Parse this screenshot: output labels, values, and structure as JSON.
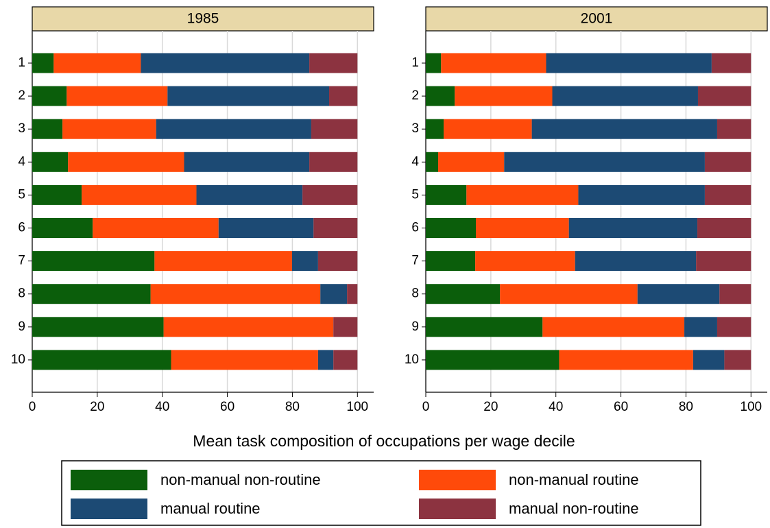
{
  "chart_data": [
    {
      "type": "bar",
      "orientation": "horizontal",
      "stacked": true,
      "title": "1985",
      "categories": [
        "1",
        "2",
        "3",
        "4",
        "5",
        "6",
        "7",
        "8",
        "9",
        "10"
      ],
      "series": [
        {
          "name": "non-manual non-routine",
          "color": "#0b5e0b",
          "values": [
            6.6,
            10.6,
            9.3,
            11.0,
            15.2,
            18.6,
            37.6,
            36.4,
            40.4,
            42.7
          ]
        },
        {
          "name": "non-manual routine",
          "color": "#ff4a0a",
          "values": [
            26.8,
            31.0,
            28.8,
            35.7,
            35.3,
            38.7,
            42.3,
            52.2,
            52.2,
            45.2
          ]
        },
        {
          "name": "manual routine",
          "color": "#1c4a74",
          "values": [
            51.8,
            49.7,
            47.7,
            38.5,
            32.6,
            29.2,
            8.0,
            8.2,
            0,
            4.7
          ]
        },
        {
          "name": "manual non-routine",
          "color": "#8c3340",
          "values": [
            14.8,
            8.7,
            14.2,
            14.8,
            16.9,
            13.5,
            12.1,
            3.2,
            7.4,
            7.4
          ]
        }
      ],
      "xlim": [
        0,
        105
      ],
      "xticks": [
        0,
        20,
        40,
        60,
        80,
        100
      ],
      "grid": true
    },
    {
      "type": "bar",
      "orientation": "horizontal",
      "stacked": true,
      "title": "2001",
      "categories": [
        "1",
        "2",
        "3",
        "4",
        "5",
        "6",
        "7",
        "8",
        "9",
        "10"
      ],
      "series": [
        {
          "color": "#0b5e0b",
          "values": [
            4.7,
            8.9,
            5.5,
            3.8,
            12.5,
            15.4,
            15.2,
            22.8,
            35.9,
            41.0
          ]
        },
        {
          "color": "#ff4a0a",
          "values": [
            32.3,
            30.0,
            27.1,
            20.3,
            34.4,
            28.6,
            30.7,
            42.3,
            43.6,
            41.2
          ]
        },
        {
          "color": "#1c4a74",
          "values": [
            50.9,
            44.8,
            57.0,
            61.7,
            38.9,
            39.5,
            37.2,
            25.2,
            10.1,
            9.6
          ]
        },
        {
          "color": "#8c3340",
          "values": [
            12.1,
            16.3,
            10.4,
            14.2,
            14.2,
            16.5,
            16.9,
            9.7,
            10.4,
            8.2
          ]
        }
      ],
      "xlim": [
        0,
        105
      ],
      "xticks": [
        0,
        20,
        40,
        60,
        80,
        100
      ],
      "grid": true
    }
  ],
  "figure": {
    "xlabel": "Mean task composition of occupations per wage decile"
  }
}
